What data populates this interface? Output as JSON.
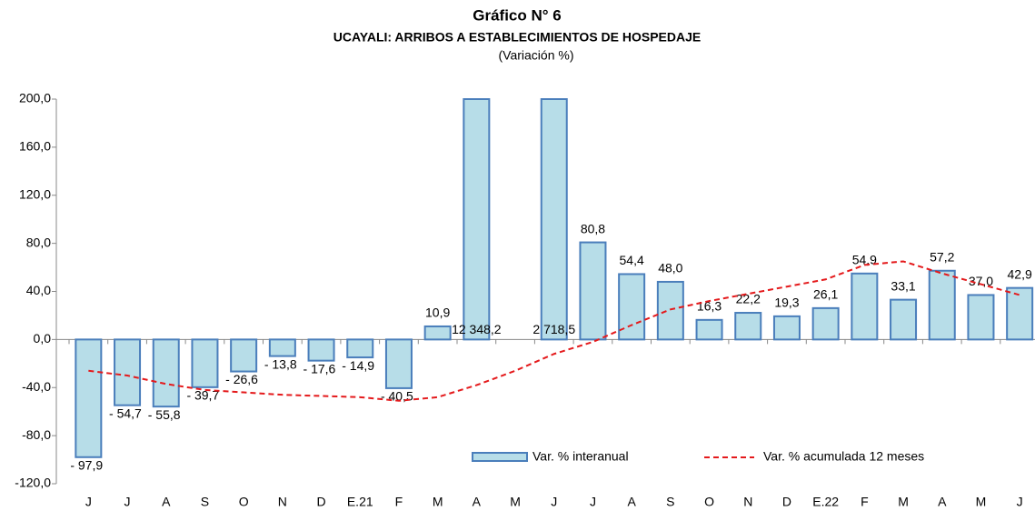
{
  "chart_data": {
    "type": "bar",
    "title": "Gráfico N° 6",
    "subtitle": "UCAYALI: ARRIBOS A ESTABLECIMIENTOS DE HOSPEDAJE",
    "note": "(Variación %)",
    "categories": [
      "J",
      "J",
      "A",
      "S",
      "O",
      "N",
      "D",
      "E.21",
      "F",
      "M",
      "A",
      "M",
      "J",
      "J",
      "A",
      "S",
      "O",
      "N",
      "D",
      "E.22",
      "F",
      "M",
      "A",
      "M",
      "J"
    ],
    "ylim": [
      -120,
      200
    ],
    "yticks": [
      {
        "value": -120,
        "label": "-120,0"
      },
      {
        "value": -80,
        "label": "-80,0"
      },
      {
        "value": -40,
        "label": "-40,0"
      },
      {
        "value": 0,
        "label": "0,0"
      },
      {
        "value": 40,
        "label": "40,0"
      },
      {
        "value": 80,
        "label": "80,0"
      },
      {
        "value": 120,
        "label": "120,0"
      },
      {
        "value": 160,
        "label": "160,0"
      },
      {
        "value": 200,
        "label": "200,0"
      }
    ],
    "series": [
      {
        "name": "Var. % interanual",
        "kind": "bar",
        "color": "#b7dde8",
        "edge": "#4a7ebb",
        "values": [
          -97.9,
          -54.7,
          -55.8,
          -39.7,
          -26.6,
          -13.8,
          -17.6,
          -14.9,
          -40.5,
          10.9,
          12348.2,
          null,
          2718.5,
          80.8,
          54.4,
          48.0,
          16.3,
          22.2,
          19.3,
          26.1,
          54.9,
          33.1,
          57.2,
          37.0,
          42.9
        ],
        "value_labels": [
          "- 97,9",
          "- 54,7",
          "- 55,8",
          "- 39,7",
          "- 26,6",
          "- 13,8",
          "- 17,6",
          "- 14,9",
          "- 40,5",
          "10,9",
          "12 348,2",
          null,
          "2 718,5",
          "80,8",
          "54,4",
          "48,0",
          "16,3",
          "22,2",
          "19,3",
          "26,1",
          "54,9",
          "33,1",
          "57,2",
          "37,0",
          "42,9"
        ]
      },
      {
        "name": "Var. % acumulada 12 meses",
        "kind": "line",
        "color": "#e41a1c",
        "values": [
          -26,
          -30,
          -37,
          -42,
          -44,
          -46,
          -47,
          -48,
          -51,
          -48,
          -38,
          -26,
          -12,
          -2,
          12,
          25,
          32,
          38,
          44,
          50,
          62,
          65,
          55,
          46,
          37
        ]
      }
    ]
  }
}
